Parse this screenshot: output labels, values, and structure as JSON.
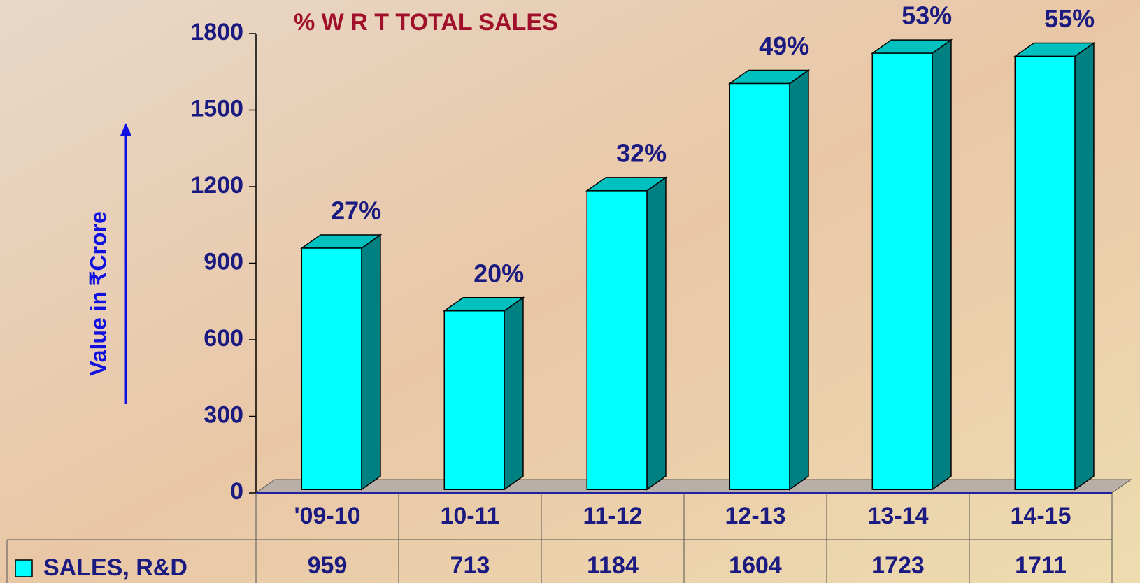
{
  "chart_data": {
    "type": "bar3d",
    "title": "% W R T TOTAL SALES",
    "y_label": "Value in ₹Crore",
    "categories": [
      "'09-10",
      "10-11",
      "11-12",
      "12-13",
      "13-14",
      "14-15"
    ],
    "series": [
      {
        "name": "SALES, R&D",
        "color": "#00ffff",
        "values": [
          959,
          713,
          1184,
          1604,
          1723,
          1711
        ]
      }
    ],
    "annotations": [
      "27%",
      "20%",
      "32%",
      "49%",
      "53%",
      "55%"
    ],
    "ylim": [
      0,
      1800
    ],
    "yticks": [
      0,
      300,
      600,
      900,
      1200,
      1500,
      1800
    ],
    "data_table": true
  }
}
